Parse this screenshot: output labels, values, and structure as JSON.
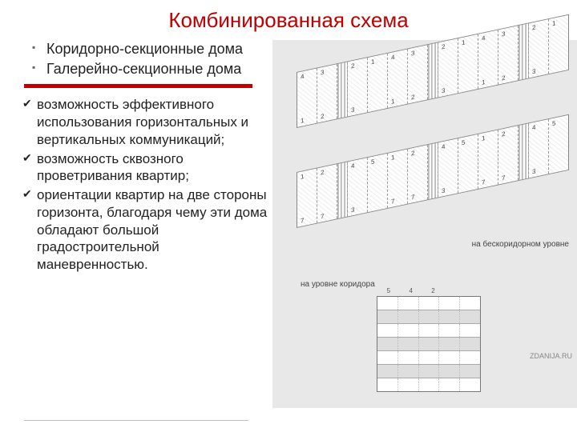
{
  "title": "Комбинированная схема",
  "main_bullets": [
    "Коридорно-секционные дома",
    "Галерейно-секционные дома"
  ],
  "body_bullets": [
    "возможность эффективного использования горизонтальных и вертикальных коммуникаций;",
    " возможность сквозного проветривания квартир;",
    " ориентации квартир на две стороны горизонта, благодаря чему эти дома обладают большой градостроительной маневренностью."
  ],
  "colors": {
    "title": "#c00000",
    "divider": "#c00000",
    "text": "#222222",
    "background": "#ffffff",
    "diagram_bg": "#e8e8e8"
  },
  "diagram": {
    "building1_units_top": [
      "4",
      "3",
      "2",
      "1",
      "",
      "4",
      "3",
      "2",
      "1",
      "",
      "4",
      "3",
      "2",
      "1"
    ],
    "building1_units_bot": [
      "1",
      "2",
      "",
      "3",
      "",
      "1",
      "2",
      "",
      "3",
      "",
      "1",
      "2",
      "",
      "3"
    ],
    "building2_units_top": [
      "1",
      "2",
      "4",
      "5",
      "",
      "1",
      "2",
      "4",
      "5",
      "",
      "1",
      "2",
      "4",
      "5"
    ],
    "building2_units_bot": [
      "7",
      "7",
      "",
      "3",
      "",
      "7",
      "7",
      "",
      "3",
      "",
      "7",
      "7",
      "",
      "3"
    ],
    "caption_right": "на бескоридорном уровне",
    "caption_left": "на уровне коридора",
    "facade_nums": [
      "5",
      "4",
      "2",
      "",
      ""
    ],
    "facade_rows": 7,
    "facade_cols": 5,
    "watermark": "ZDANIJA.RU"
  },
  "fonts": {
    "title_size": 26,
    "bullet_size": 18,
    "body_size": 17
  }
}
